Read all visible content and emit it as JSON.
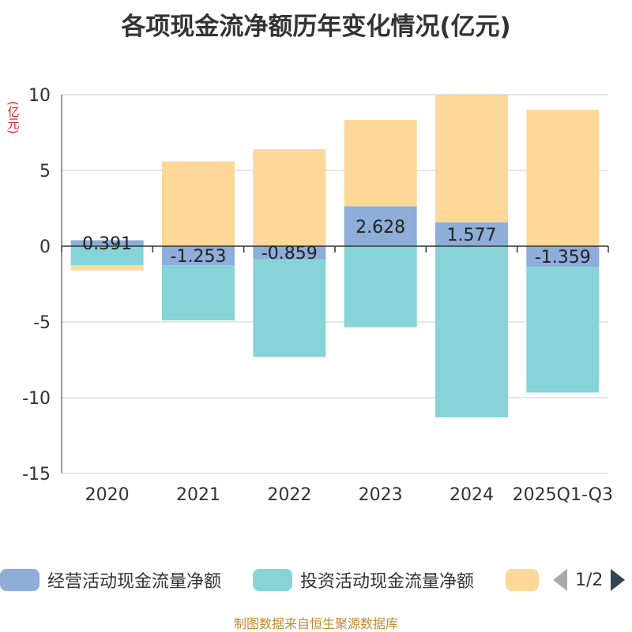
{
  "chart_data": {
    "type": "bar",
    "stacked": true,
    "title": "各项现金流净额历年变化情况(亿元)",
    "ylabel": "(亿元)",
    "ylim": [
      -15,
      10
    ],
    "yticks": [
      10,
      5,
      0,
      -5,
      -10,
      -15
    ],
    "categories": [
      "2020",
      "2021",
      "2022",
      "2023",
      "2024",
      "2025Q1-Q3"
    ],
    "series": [
      {
        "name": "经营活动现金流量净额",
        "color": "#8eadd9",
        "values": [
          0.391,
          -1.253,
          -0.859,
          2.628,
          1.577,
          -1.359
        ],
        "labels_shown": true
      },
      {
        "name": "投资活动现金流量净额",
        "color": "#86d4d8",
        "values": [
          -1.25,
          -3.65,
          -6.45,
          -5.35,
          -11.3,
          -8.3
        ],
        "labels_shown": false
      },
      {
        "name": "",
        "color": "#fdd899",
        "values": [
          -0.35,
          5.6,
          6.4,
          5.7,
          8.4,
          9.0
        ],
        "labels_shown": false
      }
    ],
    "legend_position": "bottom",
    "grid": true
  },
  "legend": {
    "page": "1/2"
  },
  "source": "制图数据来自恒生聚源数据库"
}
